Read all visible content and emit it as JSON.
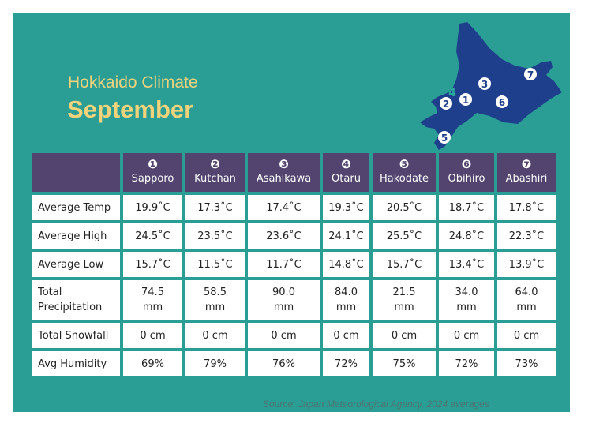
{
  "title": {
    "small": "Hokkaido Climate",
    "big": "September"
  },
  "map": {
    "markers": [
      "❶",
      "❷",
      "❸",
      "4",
      "❺",
      "❻",
      "❼"
    ],
    "colors": {
      "land": "#1e3f8c",
      "marker_fill": "#ffffff",
      "marker_text": "#1e3f8c"
    }
  },
  "table": {
    "cities": [
      {
        "num": "❶",
        "name": "Sapporo"
      },
      {
        "num": "❷",
        "name": "Kutchan"
      },
      {
        "num": "❸",
        "name": "Asahikawa"
      },
      {
        "num": "❹",
        "name": "Otaru"
      },
      {
        "num": "❺",
        "name": "Hakodate"
      },
      {
        "num": "❻",
        "name": "Obihiro"
      },
      {
        "num": "❼",
        "name": "Abashiri"
      }
    ],
    "rows": [
      {
        "label": "Average Temp",
        "values": [
          "19.9˚C",
          "17.3˚C",
          "17.4˚C",
          "19.3˚C",
          "20.5˚C",
          "18.7˚C",
          "17.8˚C"
        ]
      },
      {
        "label": "Average High",
        "values": [
          "24.5˚C",
          "23.5˚C",
          "23.6˚C",
          "24.1˚C",
          "25.5˚C",
          "24.8˚C",
          "22.3˚C"
        ]
      },
      {
        "label": "Average Low",
        "values": [
          "15.7˚C",
          "11.5˚C",
          "11.7˚C",
          "14.8˚C",
          "15.7˚C",
          "13.4˚C",
          "13.9˚C"
        ]
      },
      {
        "label_line1": "Total",
        "label_line2": "Precipitation",
        "values_line1": [
          "74.5",
          "58.5",
          "90.0",
          "84.0",
          "21.5",
          "34.0",
          "64.0"
        ],
        "unit": "mm"
      },
      {
        "label": "Total Snowfall",
        "values": [
          "0 cm",
          "0 cm",
          "0 cm",
          "0 cm",
          "0 cm",
          "0 cm",
          "0 cm"
        ]
      },
      {
        "label": "Avg Humidity",
        "values": [
          "69%",
          "79%",
          "76%",
          "72%",
          "75%",
          "72%",
          "73%"
        ]
      }
    ]
  },
  "source": "Source: Japan Meteorological Agency, 2024 averages",
  "colors": {
    "panel": "#2a9d94",
    "header": "#52446e",
    "title": "#f2d37b"
  }
}
